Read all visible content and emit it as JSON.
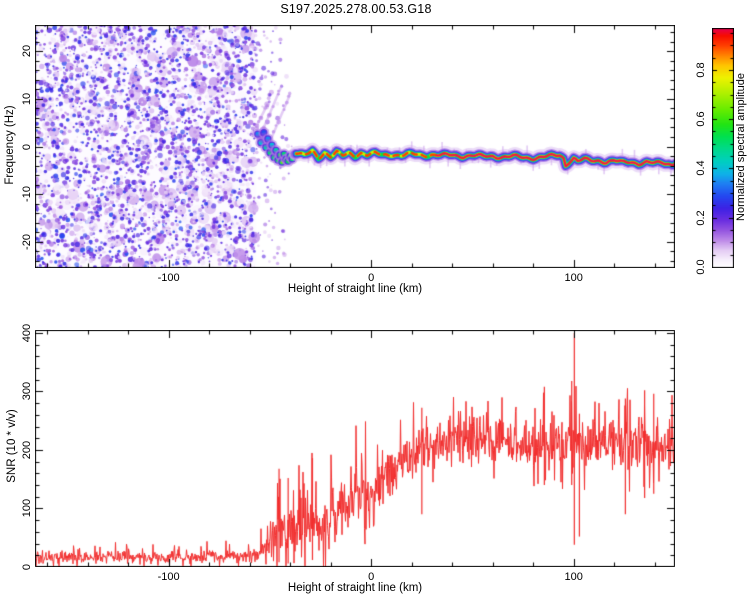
{
  "figure": {
    "title": "S197.2025.278.00.53.G18",
    "frame_color": "#000000",
    "background": "#ffffff"
  },
  "chart_data": [
    {
      "type": "heatmap",
      "role": "doppler-spectrogram",
      "xlabel": "Height of straight line (km)",
      "ylabel": "Frequency (Hz)",
      "xlim": [
        -166,
        150
      ],
      "ylim": [
        -25.5,
        25.5
      ],
      "xticks_major": [
        -100,
        0,
        100
      ],
      "xtick_labels": [
        "-100",
        "0",
        "100"
      ],
      "xtick_minor_step": 20,
      "yticks_major": [
        -20,
        -10,
        0,
        10,
        20
      ],
      "ytick_labels": [
        "-20",
        "-10",
        "0",
        "10",
        "20"
      ],
      "ytick_minor_step": 2,
      "colorbar": {
        "label": "Normalized spectral amplitude",
        "ticks": [
          0.0,
          0.2,
          0.4,
          0.6,
          0.8
        ],
        "tick_labels": [
          "0.0",
          "0.2",
          "0.4",
          "0.6",
          "0.8"
        ],
        "vmax": 0.97,
        "minor_step": 0.05,
        "stops": [
          [
            0.0,
            "#ffffff"
          ],
          [
            0.03,
            "#f7f0fc"
          ],
          [
            0.07,
            "#e3cbf4"
          ],
          [
            0.11,
            "#bd8ae8"
          ],
          [
            0.15,
            "#9455e0"
          ],
          [
            0.19,
            "#6c2fe0"
          ],
          [
            0.24,
            "#3d22e4"
          ],
          [
            0.29,
            "#2448f0"
          ],
          [
            0.34,
            "#1e7ff2"
          ],
          [
            0.38,
            "#0fb2e8"
          ],
          [
            0.43,
            "#00cfc0"
          ],
          [
            0.48,
            "#00d98c"
          ],
          [
            0.53,
            "#00e050"
          ],
          [
            0.58,
            "#22e414"
          ],
          [
            0.64,
            "#66ec00"
          ],
          [
            0.71,
            "#b2f000"
          ],
          [
            0.77,
            "#eef200"
          ],
          [
            0.82,
            "#ffc400"
          ],
          [
            0.86,
            "#ff8400"
          ],
          [
            0.9,
            "#ff4000"
          ],
          [
            0.94,
            "#f70c00"
          ],
          [
            0.97,
            "#e60050"
          ],
          [
            1.0,
            "#ef1878"
          ]
        ]
      },
      "noise_region": {
        "x_start_km": -166,
        "x_end_km": -57,
        "typical_amplitude": 0.12
      },
      "sparse_dots_region": {
        "x_start_km": -57,
        "x_end_km": -36
      },
      "streaks": [
        [
          -56,
          1,
          -44,
          13
        ],
        [
          -52,
          -1,
          -40,
          11
        ],
        [
          -57,
          4,
          -51,
          9
        ]
      ],
      "onset_blobs": [
        [
          -56,
          2.6,
          0.35
        ],
        [
          -54.5,
          0.8,
          0.4
        ],
        [
          -53,
          2.9,
          0.3
        ],
        [
          -52,
          -0.2,
          0.45
        ],
        [
          -51,
          1.6,
          0.35
        ],
        [
          -50,
          -1.3,
          0.5
        ],
        [
          -49,
          0.3,
          0.4
        ],
        [
          -48,
          -2.3,
          0.5
        ],
        [
          -47,
          -0.8,
          0.45
        ],
        [
          -46,
          -2.9,
          0.55
        ],
        [
          -45,
          -1.8,
          0.6
        ],
        [
          -44,
          -3.3,
          0.65
        ],
        [
          -43,
          -1.6,
          0.5
        ],
        [
          -42,
          -2.7,
          0.6
        ],
        [
          -41,
          -3.1,
          0.55
        ],
        [
          -40,
          -2.0,
          0.6
        ],
        [
          -39,
          -2.6,
          0.5
        ],
        [
          -38,
          -1.6,
          0.55
        ]
      ],
      "signal_track": [
        [
          -37,
          -1.3
        ],
        [
          -33,
          -2.0
        ],
        [
          -29,
          -1.0
        ],
        [
          -26,
          -2.3
        ],
        [
          -23,
          -1.2
        ],
        [
          -20,
          -2.1
        ],
        [
          -17,
          -1.3
        ],
        [
          -14,
          -2.0
        ],
        [
          -11,
          -1.4
        ],
        [
          -8,
          -1.9
        ],
        [
          -5,
          -1.3
        ],
        [
          -2,
          -1.8
        ],
        [
          2,
          -1.5
        ],
        [
          6,
          -1.8
        ],
        [
          10,
          -1.6
        ],
        [
          15,
          -1.9
        ],
        [
          20,
          -1.6
        ],
        [
          25,
          -1.8
        ],
        [
          30,
          -1.7
        ],
        [
          35,
          -1.9
        ],
        [
          40,
          -1.8
        ],
        [
          45,
          -2.0
        ],
        [
          50,
          -1.9
        ],
        [
          55,
          -2.1
        ],
        [
          60,
          -2.0
        ],
        [
          65,
          -2.2
        ],
        [
          70,
          -2.1
        ],
        [
          75,
          -2.3
        ],
        [
          80,
          -2.4
        ],
        [
          85,
          -2.2
        ],
        [
          90,
          -2.0
        ],
        [
          93,
          -1.8
        ],
        [
          95,
          -2.4
        ],
        [
          96,
          -3.9
        ],
        [
          98,
          -3.0
        ],
        [
          100,
          -2.4
        ],
        [
          102,
          -3.1
        ],
        [
          105,
          -2.7
        ],
        [
          108,
          -3.0
        ],
        [
          112,
          -2.9
        ],
        [
          116,
          -3.2
        ],
        [
          120,
          -3.0
        ],
        [
          124,
          -3.4
        ],
        [
          128,
          -3.2
        ],
        [
          132,
          -3.5
        ],
        [
          136,
          -3.3
        ],
        [
          140,
          -3.6
        ],
        [
          144,
          -3.4
        ],
        [
          148,
          -3.7
        ],
        [
          150,
          -3.6
        ]
      ],
      "track_red_dash_until_km": 32,
      "track_solid_core_from_km": 34
    },
    {
      "type": "line",
      "role": "snr-profile",
      "xlabel": "Height of straight line (km)",
      "ylabel": "SNR (10 * v/v)",
      "xlim": [
        -166,
        150
      ],
      "ylim": [
        0,
        405
      ],
      "xticks_major": [
        -100,
        0,
        100
      ],
      "xtick_labels": [
        "-100",
        "0",
        "100"
      ],
      "xtick_minor_step": 20,
      "yticks_major": [
        0,
        100,
        200,
        300,
        400
      ],
      "ytick_labels": [
        "0",
        "100",
        "200",
        "300",
        "400"
      ],
      "ytick_minor_step": 20,
      "series": [
        {
          "name": "SNR",
          "color": "#f22e2e",
          "envelope": [
            [
              -166,
              17,
              13
            ],
            [
              -100,
              17,
              13
            ],
            [
              -62,
              18,
              14
            ],
            [
              -54,
              26,
              22
            ],
            [
              -50,
              45,
              45
            ],
            [
              -46,
              65,
              60
            ],
            [
              -42,
              55,
              50
            ],
            [
              -38,
              70,
              60
            ],
            [
              -34,
              60,
              55
            ],
            [
              -30,
              80,
              62
            ],
            [
              -26,
              70,
              55
            ],
            [
              -22,
              85,
              60
            ],
            [
              -18,
              95,
              60
            ],
            [
              -14,
              105,
              62
            ],
            [
              -10,
              118,
              60
            ],
            [
              -6,
              125,
              60
            ],
            [
              -2,
              132,
              60
            ],
            [
              2,
              142,
              58
            ],
            [
              6,
              150,
              55
            ],
            [
              10,
              162,
              52
            ],
            [
              14,
              172,
              50
            ],
            [
              18,
              185,
              50
            ],
            [
              22,
              196,
              48
            ],
            [
              26,
              205,
              48
            ],
            [
              30,
              212,
              45
            ],
            [
              35,
              216,
              44
            ],
            [
              40,
              218,
              44
            ],
            [
              50,
              220,
              44
            ],
            [
              60,
              217,
              44
            ],
            [
              70,
              214,
              45
            ],
            [
              80,
              210,
              48
            ],
            [
              90,
              206,
              50
            ],
            [
              96,
              204,
              52
            ],
            [
              104,
              208,
              55
            ],
            [
              112,
              214,
              50
            ],
            [
              120,
              212,
              52
            ],
            [
              128,
              210,
              55
            ],
            [
              136,
              214,
              55
            ],
            [
              144,
              210,
              50
            ],
            [
              150,
              206,
              46
            ]
          ],
          "events": [
            [
              -45.5,
              8,
              168
            ],
            [
              -41,
              6,
              152
            ],
            [
              -29,
              12,
              186
            ],
            [
              25,
              90,
              272
            ],
            [
              85.5,
              140,
              308
            ],
            [
              99.0,
              140,
              318
            ],
            [
              100.3,
              38,
              400
            ],
            [
              102.8,
              52,
              262
            ],
            [
              125.5,
              90,
              288
            ],
            [
              135.0,
              118,
              302
            ],
            [
              139.5,
              125,
              296
            ]
          ]
        }
      ]
    }
  ]
}
